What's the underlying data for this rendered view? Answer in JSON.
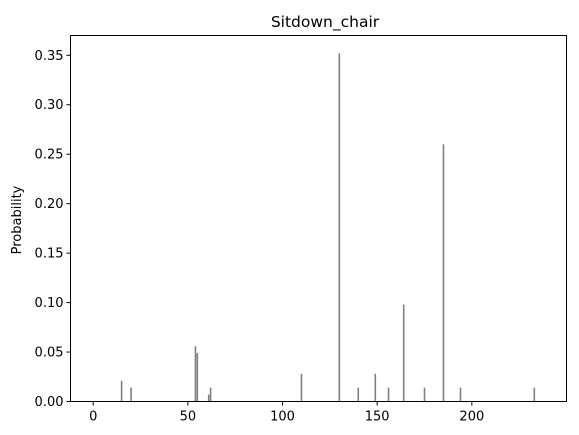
{
  "chart_data": {
    "type": "bar",
    "title": "Sitdown_chair",
    "xlabel": "",
    "ylabel": "Probability",
    "xlim": [
      -12,
      250
    ],
    "ylim": [
      0,
      0.37
    ],
    "x_ticks": [
      0,
      50,
      100,
      150,
      200
    ],
    "y_ticks": [
      0.0,
      0.05,
      0.1,
      0.15,
      0.2,
      0.25,
      0.3,
      0.35
    ],
    "y_tick_labels": [
      "0.00",
      "0.05",
      "0.10",
      "0.15",
      "0.20",
      "0.25",
      "0.30",
      "0.35"
    ],
    "bar_color": "#808080",
    "grid": false,
    "points": [
      {
        "x": 15,
        "y": 0.021
      },
      {
        "x": 20,
        "y": 0.014
      },
      {
        "x": 54,
        "y": 0.056
      },
      {
        "x": 55,
        "y": 0.049
      },
      {
        "x": 61,
        "y": 0.007
      },
      {
        "x": 62,
        "y": 0.014
      },
      {
        "x": 110,
        "y": 0.028
      },
      {
        "x": 130,
        "y": 0.352
      },
      {
        "x": 140,
        "y": 0.014
      },
      {
        "x": 149,
        "y": 0.028
      },
      {
        "x": 156,
        "y": 0.014
      },
      {
        "x": 164,
        "y": 0.098
      },
      {
        "x": 175,
        "y": 0.014
      },
      {
        "x": 185,
        "y": 0.26
      },
      {
        "x": 194,
        "y": 0.014
      },
      {
        "x": 233,
        "y": 0.014
      }
    ]
  }
}
